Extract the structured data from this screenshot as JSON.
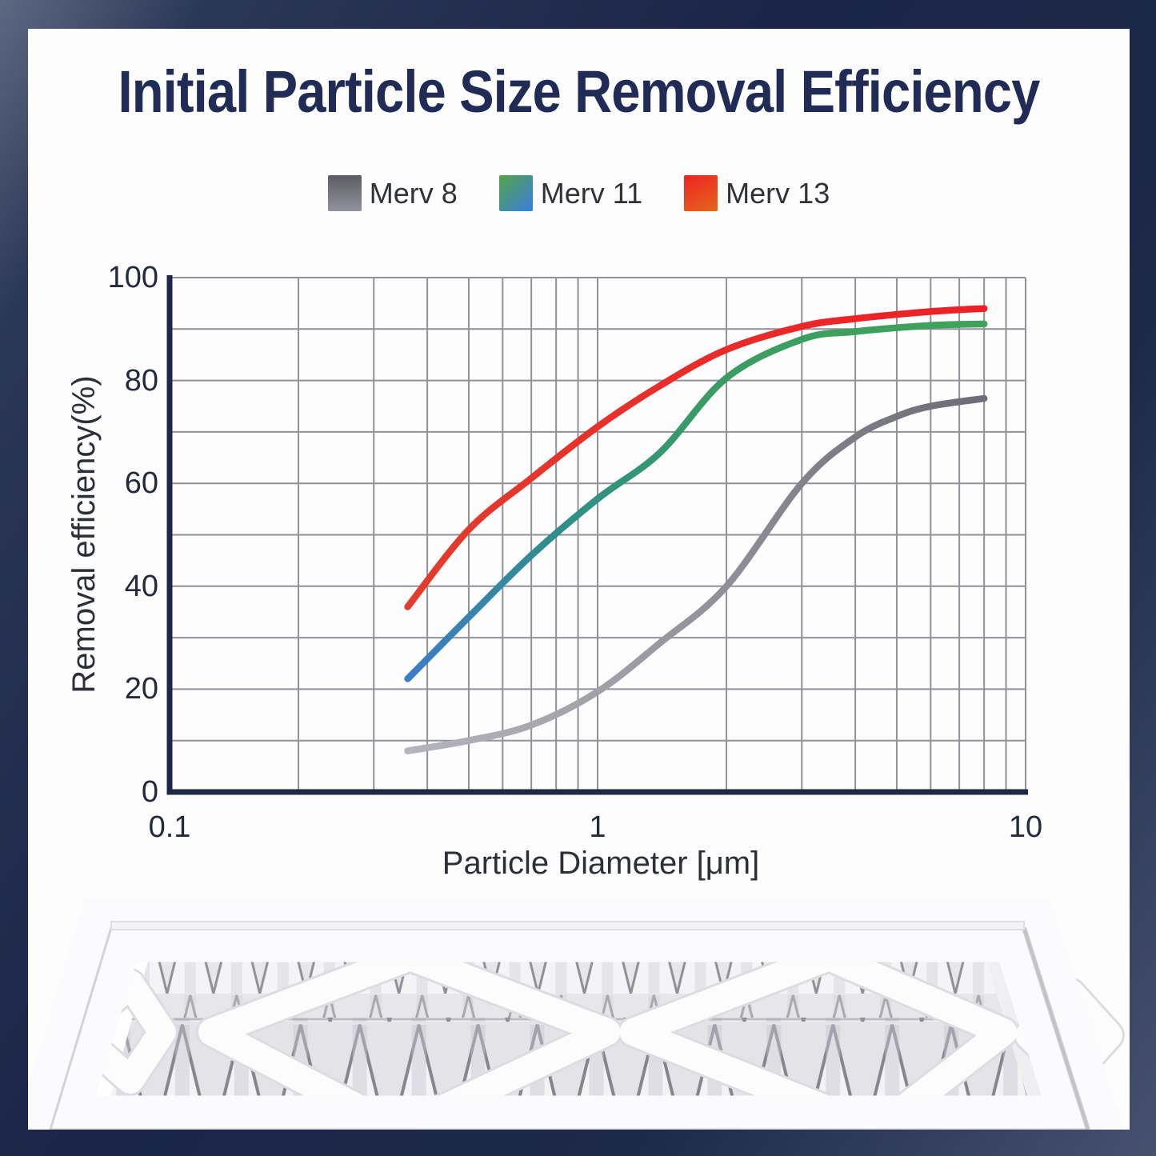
{
  "header": {
    "title": "Initial Particle Size Removal Efficiency"
  },
  "legend": {
    "items": [
      {
        "label": "Merv 8",
        "swatch": {
          "angle": "180deg",
          "from": "#5c5c64",
          "to": "#92929c"
        }
      },
      {
        "label": "Merv 11",
        "swatch": {
          "angle": "135deg",
          "from": "#54a449",
          "to": "#3a7de0"
        }
      },
      {
        "label": "Merv 13",
        "swatch": {
          "angle": "155deg",
          "from": "#ee2424",
          "to": "#e5661c"
        }
      }
    ]
  },
  "chart_data": {
    "type": "line",
    "title": "Initial Particle Size Removal Efficiency",
    "xlabel": "Particle Diameter [μm]",
    "ylabel": "Removal efficiency(%)",
    "x_scale": "log",
    "xlim": [
      0.1,
      10
    ],
    "ylim": [
      0,
      100
    ],
    "grid": "on",
    "legend_position": "top",
    "x_ticks": [
      {
        "value": 0.1,
        "label": "0.1"
      },
      {
        "value": 1,
        "label": "1"
      },
      {
        "value": 10,
        "label": "10"
      }
    ],
    "y_ticks": [
      {
        "value": 0,
        "label": "0"
      },
      {
        "value": 20,
        "label": "20"
      },
      {
        "value": 40,
        "label": "40"
      },
      {
        "value": 60,
        "label": "60"
      },
      {
        "value": 80,
        "label": "80"
      },
      {
        "value": 100,
        "label": "100"
      }
    ],
    "y_grid_step": 10,
    "grid_color": "#90919a",
    "axis_color": "#1b2846",
    "series": [
      {
        "name": "Merv 8",
        "points": [
          [
            0.36,
            8
          ],
          [
            0.5,
            10
          ],
          [
            0.7,
            13
          ],
          [
            1,
            19.5
          ],
          [
            1.4,
            29
          ],
          [
            2,
            40
          ],
          [
            3,
            60
          ],
          [
            4,
            69
          ],
          [
            5,
            73
          ],
          [
            6,
            75
          ],
          [
            8,
            76.5
          ]
        ],
        "gradient": [
          {
            "offset": 0,
            "color": "#b4b4bc"
          },
          {
            "offset": 0.55,
            "color": "#8e8e97"
          },
          {
            "offset": 1,
            "color": "#6d6d77"
          }
        ]
      },
      {
        "name": "Merv 11",
        "points": [
          [
            0.36,
            22
          ],
          [
            0.5,
            34
          ],
          [
            0.7,
            46
          ],
          [
            1,
            57
          ],
          [
            1.4,
            66
          ],
          [
            2,
            80.5
          ],
          [
            3,
            88
          ],
          [
            4,
            89.5
          ],
          [
            6,
            90.7
          ],
          [
            8,
            91
          ]
        ],
        "gradient": [
          {
            "offset": 0,
            "color": "#3d7dc8"
          },
          {
            "offset": 0.3,
            "color": "#2f8e8b"
          },
          {
            "offset": 0.6,
            "color": "#3a9c63"
          },
          {
            "offset": 1,
            "color": "#40a35a"
          }
        ]
      },
      {
        "name": "Merv 13",
        "points": [
          [
            0.36,
            36
          ],
          [
            0.5,
            51
          ],
          [
            0.7,
            61
          ],
          [
            1,
            71
          ],
          [
            1.4,
            79
          ],
          [
            2,
            86
          ],
          [
            3,
            90.5
          ],
          [
            4,
            92
          ],
          [
            6,
            93.4
          ],
          [
            8,
            94
          ]
        ],
        "gradient": [
          {
            "offset": 0,
            "color": "#e23d2e"
          },
          {
            "offset": 1,
            "color": "#ee2025"
          }
        ]
      }
    ]
  }
}
